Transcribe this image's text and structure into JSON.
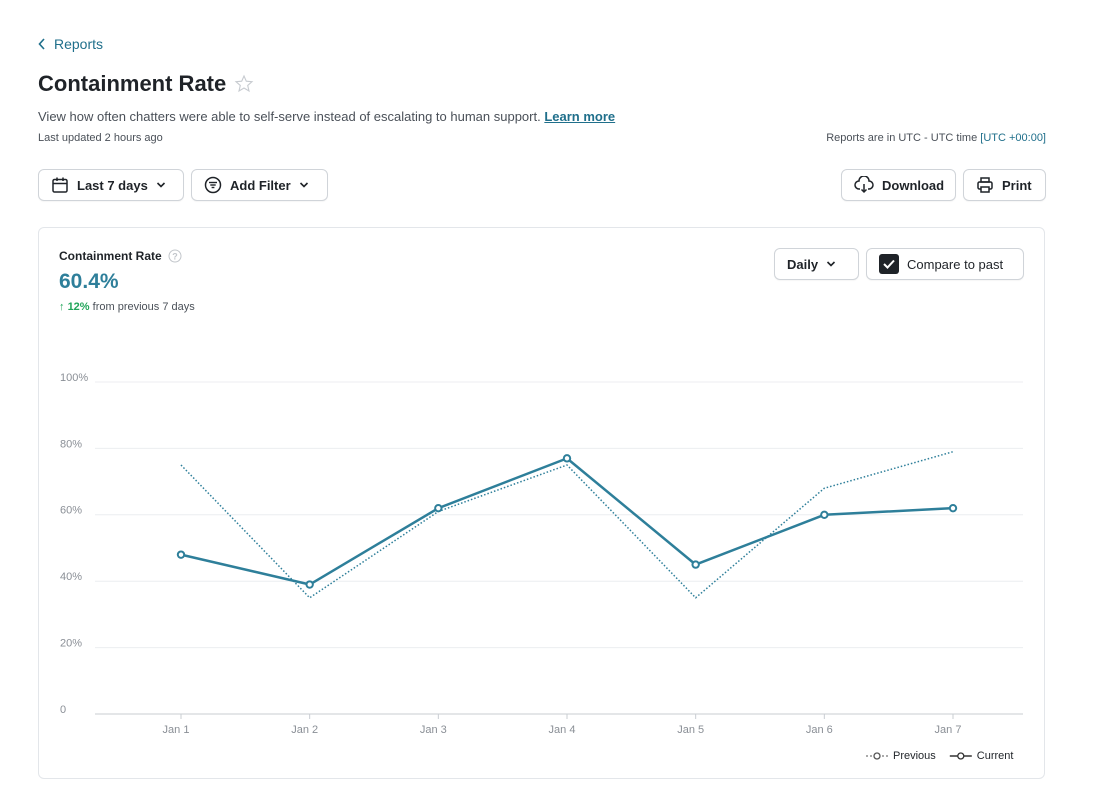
{
  "nav": {
    "back": "Reports"
  },
  "header": {
    "title": "Containment Rate",
    "description": "View how often chatters were able to self-serve instead of escalating to human support.",
    "learn_more": "Learn more",
    "last_updated": "Last updated 2 hours ago",
    "timezone": "Reports are in UTC - UTC time",
    "timezone_offset": "[UTC +00:00]"
  },
  "toolbar": {
    "date_range": "Last 7 days",
    "filter": "Add Filter",
    "download": "Download",
    "print": "Print"
  },
  "card": {
    "metric_label": "Containment Rate",
    "metric_value": "60.4%",
    "change": "12%",
    "change_note": "from previous 7 days",
    "granularity": "Daily",
    "compare": "Compare to past"
  },
  "chart_data": {
    "type": "line",
    "categories": [
      "Jan 1",
      "Jan 2",
      "Jan 3",
      "Jan 4",
      "Jan 5",
      "Jan 6",
      "Jan 7"
    ],
    "series": [
      {
        "name": "Previous",
        "color": "#2e7f9a",
        "style": "dotted",
        "values": [
          75,
          35,
          61,
          75,
          35,
          68,
          79
        ]
      },
      {
        "name": "Current",
        "color": "#2e7f9a",
        "style": "solid",
        "values": [
          48,
          39,
          62,
          77,
          45,
          60,
          62
        ]
      }
    ],
    "ylim": [
      0,
      100
    ],
    "yticks": [
      0,
      {
        "value": 20,
        "label": "20%"
      },
      {
        "value": 40,
        "label": "40%"
      },
      {
        "value": 60,
        "label": "60%"
      },
      {
        "value": 80,
        "label": "80%"
      },
      {
        "value": 100,
        "label": "100%"
      }
    ],
    "grid": true,
    "legend": "bottom-right"
  }
}
